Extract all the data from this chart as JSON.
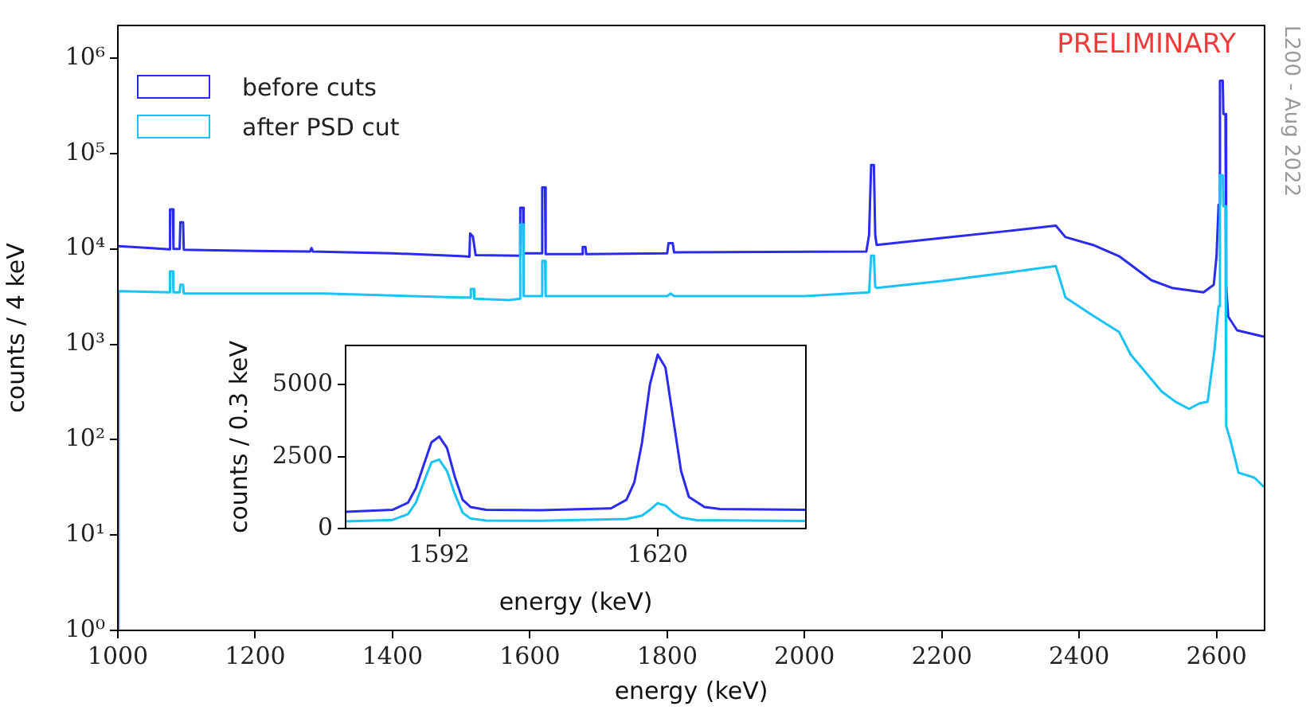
{
  "chart_data": [
    {
      "type": "line",
      "xlabel": "energy (keV)",
      "ylabel": "counts / 4 keV",
      "log": "y",
      "legend": "top left",
      "xlim": [
        1000,
        2670
      ],
      "xticks": [
        1000,
        1200,
        1400,
        1600,
        1800,
        2000,
        2200,
        2400,
        2600
      ],
      "ylim": [
        1,
        2200000
      ],
      "yticks": [
        {
          "value": 1,
          "label": "10⁰"
        },
        {
          "value": 10,
          "label": "10¹"
        },
        {
          "value": 100,
          "label": "10²"
        },
        {
          "value": 1000,
          "label": "10³"
        },
        {
          "value": 10000,
          "label": "10⁴"
        },
        {
          "value": 100000,
          "label": "10⁵"
        },
        {
          "value": 1000000,
          "label": "10⁶"
        }
      ],
      "annotations": [
        "PRELIMINARY",
        "L200 - Aug 2022"
      ],
      "series": [
        {
          "name": "before cuts",
          "color": "#2b2bf0",
          "x": [
            1001,
            1040,
            1075,
            1076,
            1080,
            1081,
            1090,
            1091,
            1095,
            1096,
            1200,
            1280,
            1282,
            1284,
            1400,
            1500,
            1512,
            1513,
            1517,
            1521,
            1585,
            1586,
            1590,
            1591,
            1617,
            1618,
            1622,
            1623,
            1676,
            1677,
            1681,
            1682,
            1800,
            1802,
            1808,
            1810,
            1950,
            2090,
            2094,
            2097,
            2101,
            2103,
            2105,
            2200,
            2300,
            2366,
            2380,
            2420,
            2458,
            2505,
            2535,
            2581,
            2596,
            2600,
            2603,
            2605,
            2609,
            2610,
            2613,
            2614,
            2617,
            2630,
            2669
          ],
          "values": [
            10700,
            10300,
            9900,
            26000,
            26000,
            10000,
            10000,
            19000,
            19000,
            9800,
            9500,
            9400,
            10200,
            9400,
            9000,
            8400,
            8300,
            14500,
            13500,
            8600,
            8500,
            27000,
            27000,
            9000,
            9000,
            44000,
            44000,
            8800,
            8800,
            10500,
            10500,
            8800,
            9000,
            11500,
            11500,
            9200,
            9300,
            9400,
            14000,
            76000,
            76000,
            14000,
            11000,
            13000,
            15500,
            17500,
            13300,
            11000,
            8400,
            4700,
            3900,
            3500,
            4200,
            8400,
            29000,
            580000,
            580000,
            260000,
            260000,
            4200,
            1950,
            1400,
            1200
          ]
        },
        {
          "name": "after PSD cut",
          "color": "#19c3f5",
          "x": [
            1000,
            1001,
            1075,
            1076,
            1080,
            1081,
            1090,
            1091,
            1095,
            1096,
            1300,
            1500,
            1513,
            1514,
            1518,
            1519,
            1570,
            1585,
            1586,
            1590,
            1591,
            1617,
            1618,
            1622,
            1623,
            1800,
            1805,
            1810,
            2000,
            2094,
            2097,
            2101,
            2103,
            2105,
            2200,
            2300,
            2366,
            2380,
            2420,
            2458,
            2475,
            2520,
            2540,
            2560,
            2575,
            2587,
            2597,
            2603,
            2605,
            2609,
            2610,
            2613,
            2614,
            2620,
            2632,
            2655,
            2669
          ],
          "values": [
            1,
            3600,
            3500,
            5800,
            5800,
            3500,
            3500,
            4200,
            4200,
            3400,
            3400,
            3100,
            3100,
            3800,
            3800,
            3000,
            2900,
            3000,
            18000,
            18000,
            3200,
            3200,
            7500,
            7500,
            3200,
            3200,
            3400,
            3200,
            3200,
            3500,
            8500,
            8500,
            4000,
            3900,
            4600,
            5700,
            6600,
            3100,
            2000,
            1350,
            780,
            320,
            250,
            210,
            240,
            250,
            870,
            2500,
            59000,
            59000,
            28000,
            28000,
            140,
            100,
            45,
            40,
            32
          ]
        }
      ]
    },
    {
      "type": "line",
      "xlabel": "energy (keV)",
      "ylabel": "counts / 0.3 keV",
      "xlim": [
        1580,
        1639
      ],
      "xticks": [
        1592,
        1620
      ],
      "ylim": [
        0,
        6370
      ],
      "yticks": [
        0,
        2500,
        5000
      ],
      "series": [
        {
          "color": "#2b2bf0",
          "x": [
            1580,
            1586,
            1588,
            1589,
            1590,
            1591,
            1592,
            1593,
            1594,
            1595,
            1596,
            1598,
            1605,
            1614,
            1616,
            1617,
            1618,
            1619,
            1620,
            1621,
            1622,
            1623,
            1624,
            1626,
            1628,
            1639
          ],
          "values": [
            580,
            650,
            900,
            1400,
            2200,
            3000,
            3200,
            2800,
            1800,
            1000,
            750,
            650,
            640,
            700,
            1000,
            1600,
            3000,
            5000,
            6050,
            5600,
            3800,
            2000,
            1100,
            750,
            680,
            650
          ]
        },
        {
          "color": "#19c3f5",
          "x": [
            1580,
            1586,
            1588,
            1589,
            1590,
            1591,
            1592,
            1593,
            1594,
            1595,
            1596,
            1598,
            1605,
            1616,
            1618,
            1619,
            1620,
            1621,
            1622,
            1623,
            1625,
            1639
          ],
          "values": [
            250,
            300,
            500,
            900,
            1600,
            2300,
            2400,
            2000,
            1200,
            550,
            350,
            280,
            270,
            330,
            450,
            650,
            880,
            800,
            550,
            380,
            290,
            260
          ]
        }
      ]
    }
  ]
}
